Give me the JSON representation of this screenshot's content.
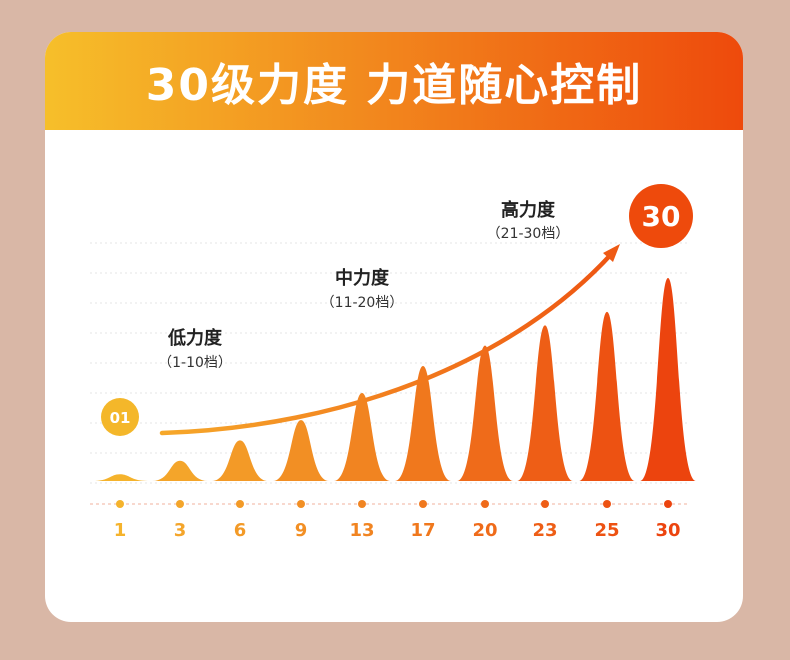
{
  "banner": {
    "title": "30级力度 力道随心控制"
  },
  "start_badge": "01",
  "end_badge": "30",
  "zones": [
    {
      "name": "低力度",
      "range": "（1-10档）"
    },
    {
      "name": "中力度",
      "range": "（11-20档）"
    },
    {
      "name": "高力度",
      "range": "（21-30档）"
    }
  ],
  "chart_data": {
    "type": "area",
    "title": "30级力度 力道随心控制",
    "x": [
      "1",
      "3",
      "6",
      "9",
      "13",
      "17",
      "20",
      "23",
      "25",
      "30"
    ],
    "values": [
      1,
      3,
      6,
      9,
      13,
      17,
      20,
      23,
      25,
      30
    ],
    "ylim": [
      0,
      30
    ],
    "colors": [
      "#f5b32c",
      "#f4a52a",
      "#f39a27",
      "#f28f24",
      "#f18421",
      "#f0781d",
      "#ef6b1a",
      "#ee5e16",
      "#ed5212",
      "#ec440e"
    ],
    "grid": true
  },
  "colors": {
    "accent_light": "#f6bf2a",
    "accent_dark": "#ee4a0c",
    "arrow": "#f08a1d"
  }
}
